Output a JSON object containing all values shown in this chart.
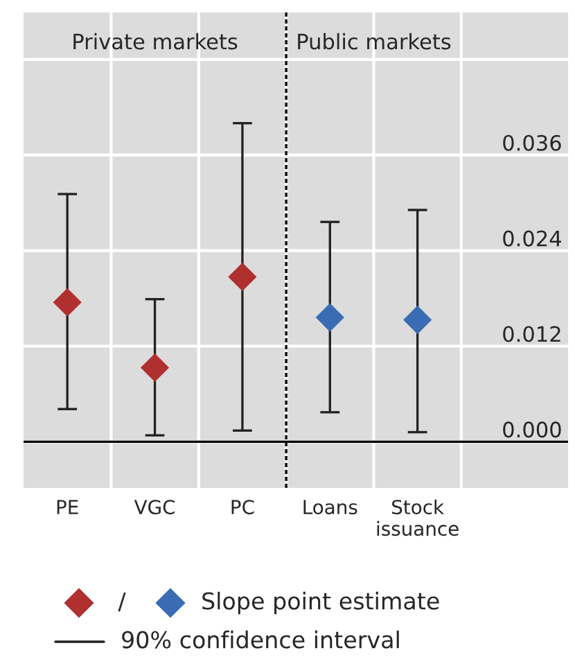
{
  "chart_data": {
    "type": "scatter",
    "categories": [
      "PE",
      "VGC",
      "PC",
      "Loans",
      "Stock\nissuance"
    ],
    "series": [
      {
        "color": "#b03030",
        "values": [
          0.0175,
          0.0093,
          0.0207,
          null,
          null
        ],
        "errors": [
          [
            0.0041,
            0.0311
          ],
          [
            0.0008,
            0.0179
          ],
          [
            0.0014,
            0.04
          ],
          null,
          null
        ]
      },
      {
        "name": "Slope point estimate",
        "color": "#3a6cb4",
        "values": [
          null,
          null,
          null,
          0.0156,
          0.0153
        ],
        "errors": [
          null,
          null,
          null,
          [
            0.0037,
            0.0276
          ],
          [
            0.0012,
            0.0291
          ]
        ]
      }
    ],
    "marker": "diamond",
    "ylim": [
      -0.0058,
      0.0539
    ],
    "yticks": [
      {
        "value": 0,
        "label": "0.000"
      },
      {
        "value": 0.012,
        "label": "0.012"
      },
      {
        "value": 0.024,
        "label": "0.024"
      },
      {
        "value": 0.036,
        "label": "0.036"
      },
      {
        "value": 0.048,
        "label": null
      }
    ],
    "grid": true,
    "legend": "bottom",
    "ref_lines": [
      {
        "axis": "y",
        "value": 0,
        "color": "#000000",
        "line_style": "solid"
      }
    ],
    "annotations": [
      "Private markets",
      "Public markets",
      "/",
      "90% confidence interval"
    ]
  }
}
